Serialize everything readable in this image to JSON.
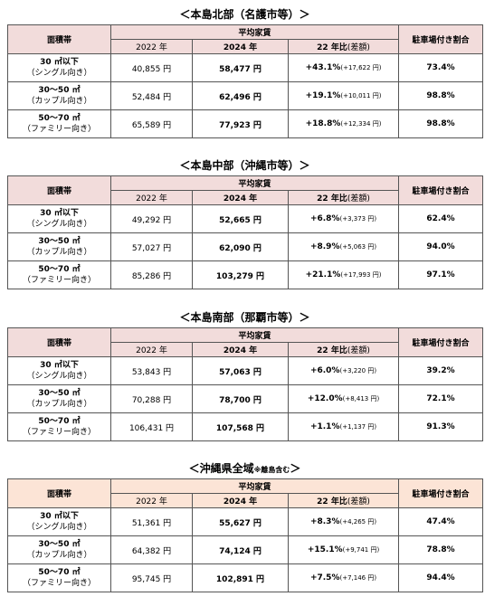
{
  "sections": [
    {
      "title": "＜本島北部（名護市等）＞",
      "header": {
        "area": "面積帯",
        "rent": "平均家賃",
        "y2022": "2022 年",
        "y2024": "2024 年",
        "ratio": "22 年比",
        "diff": "(差額)",
        "parking": "駐車場付き割合"
      },
      "rows": [
        {
          "area": "30 ㎡以下",
          "area_note": "（シングル向き）",
          "y2022": "40,855 円",
          "y2024": "58,477 円",
          "ratio": "+43.1%",
          "diff": "(+17,622 円)",
          "parking": "73.4%"
        },
        {
          "area": "30～50 ㎡",
          "area_note": "（カップル向き）",
          "y2022": "52,484 円",
          "y2024": "62,496 円",
          "ratio": "+19.1%",
          "diff": "(+10,011 円)",
          "parking": "98.8%"
        },
        {
          "area": "50～70 ㎡",
          "area_note": "（ファミリー向き）",
          "y2022": "65,589 円",
          "y2024": "77,923 円",
          "ratio": "+18.8%",
          "diff": "(+12,334 円)",
          "parking": "98.8%"
        }
      ]
    },
    {
      "title": "＜本島中部（沖縄市等）＞",
      "header": {
        "area": "面積帯",
        "rent": "平均家賃",
        "y2022": "2022 年",
        "y2024": "2024 年",
        "ratio": "22 年比",
        "diff": "(差額)",
        "parking": "駐車場付き割合"
      },
      "rows": [
        {
          "area": "30 ㎡以下",
          "area_note": "（シングル向き）",
          "y2022": "49,292 円",
          "y2024": "52,665 円",
          "ratio": "+6.8%",
          "diff": "(+3,373 円)",
          "parking": "62.4%"
        },
        {
          "area": "30～50 ㎡",
          "area_note": "（カップル向き）",
          "y2022": "57,027 円",
          "y2024": "62,090 円",
          "ratio": "+8.9%",
          "diff": "(+5,063 円)",
          "parking": "94.0%"
        },
        {
          "area": "50～70 ㎡",
          "area_note": "（ファミリー向き）",
          "y2022": "85,286 円",
          "y2024": "103,279 円",
          "ratio": "+21.1%",
          "diff": "(+17,993 円)",
          "parking": "97.1%"
        }
      ]
    },
    {
      "title": "＜本島南部（那覇市等）＞",
      "header": {
        "area": "面積帯",
        "rent": "平均家賃",
        "y2022": "2022 年",
        "y2024": "2024 年",
        "ratio": "22 年比",
        "diff": "(差額)",
        "parking": "駐車場付き割合"
      },
      "rows": [
        {
          "area": "30 ㎡以下",
          "area_note": "（シングル向き）",
          "y2022": "53,843 円",
          "y2024": "57,063 円",
          "ratio": "+6.0%",
          "diff": "(+3,220 円)",
          "parking": "39.2%"
        },
        {
          "area": "30～50 ㎡",
          "area_note": "（カップル向き）",
          "y2022": "70,288 円",
          "y2024": "78,700 円",
          "ratio": "+12.0%",
          "diff": "(+8,413 円)",
          "parking": "72.1%"
        },
        {
          "area": "50～70 ㎡",
          "area_note": "（ファミリー向き）",
          "y2022": "106,431 円",
          "y2024": "107,568 円",
          "ratio": "+1.1%",
          "diff": "(+1,137 円)",
          "parking": "91.3%"
        }
      ]
    },
    {
      "title": "＜沖縄県全域",
      "title_note": "※離島含む",
      "title_end": "＞",
      "header": {
        "area": "面積帯",
        "rent": "平均家賃",
        "y2022": "2022 年",
        "y2024": "2024 年",
        "ratio": "22 年比",
        "diff": "(差額)",
        "parking": "駐車場付き割合"
      },
      "rows": [
        {
          "area": "30 ㎡以下",
          "area_note": "（シングル向き）",
          "y2022": "51,361 円",
          "y2024": "55,627 円",
          "ratio": "+8.3%",
          "diff": "(+4,265 円)",
          "parking": "47.4%"
        },
        {
          "area": "30～50 ㎡",
          "area_note": "（カップル向き）",
          "y2022": "64,382 円",
          "y2024": "74,124 円",
          "ratio": "+15.1%",
          "diff": "(+9,741 円)",
          "parking": "78.8%"
        },
        {
          "area": "50～70 ㎡",
          "area_note": "（ファミリー向き）",
          "y2022": "95,745 円",
          "y2024": "102,891 円",
          "ratio": "+7.5%",
          "diff": "(+7,146 円)",
          "parking": "94.4%"
        }
      ]
    }
  ]
}
